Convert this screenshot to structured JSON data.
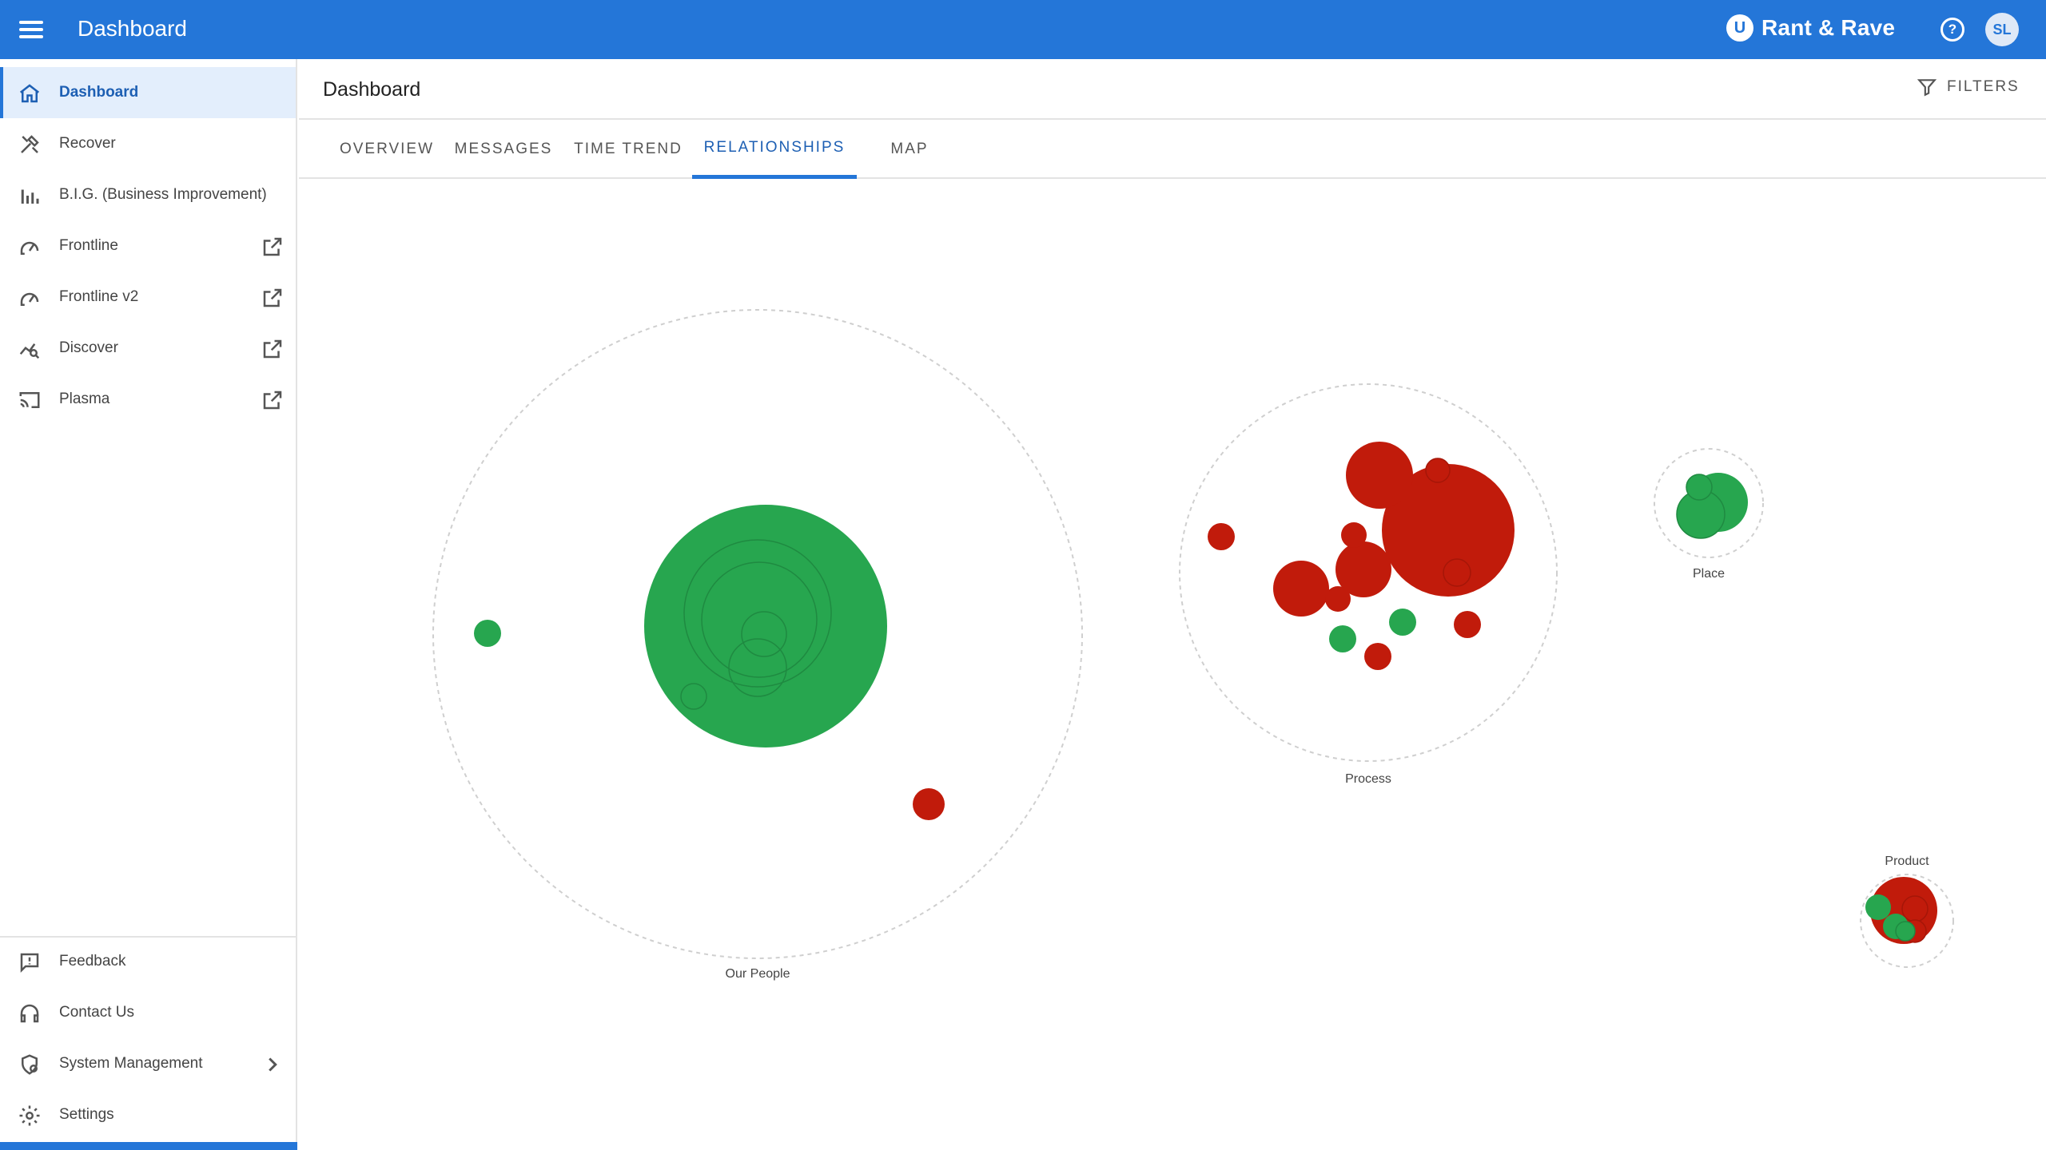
{
  "app": {
    "title": "Dashboard",
    "brand": "Rant & Rave",
    "brand_logo_letter": "U",
    "help_glyph": "?",
    "user_initials": "SL"
  },
  "sidebar": {
    "items": [
      {
        "label": "Dashboard",
        "icon": "home-icon",
        "active": true,
        "external": false
      },
      {
        "label": "Recover",
        "icon": "tools-icon",
        "active": false,
        "external": false
      },
      {
        "label": "B.I.G. (Business Improvement)",
        "icon": "bar-chart-icon",
        "active": false,
        "external": false
      },
      {
        "label": "Frontline",
        "icon": "headset-gauge-icon",
        "active": false,
        "external": true
      },
      {
        "label": "Frontline v2",
        "icon": "headset-gauge-icon",
        "active": false,
        "external": true
      },
      {
        "label": "Discover",
        "icon": "chart-search-icon",
        "active": false,
        "external": true
      },
      {
        "label": "Plasma",
        "icon": "cast-screen-icon",
        "active": false,
        "external": true
      }
    ],
    "bottom_items": [
      {
        "label": "Feedback",
        "icon": "feedback-icon"
      },
      {
        "label": "Contact Us",
        "icon": "headset-icon"
      },
      {
        "label": "System Management",
        "icon": "shield-gear-icon",
        "has_submenu": true
      },
      {
        "label": "Settings",
        "icon": "gear-icon"
      }
    ]
  },
  "header": {
    "title": "Dashboard",
    "filters_label": "FILTERS"
  },
  "tabs": [
    {
      "label": "OVERVIEW",
      "active": false
    },
    {
      "label": "MESSAGES",
      "active": false
    },
    {
      "label": "TIME TREND",
      "active": false
    },
    {
      "label": "RELATIONSHIPS",
      "active": true
    },
    {
      "label": "MAP",
      "active": false
    }
  ],
  "colors": {
    "accent": "#2476d8",
    "positive": "#27a64f",
    "negative": "#c11b0b",
    "cluster_border": "#cfcfcf"
  },
  "clusters": [
    {
      "name": "Our People"
    },
    {
      "name": "Process"
    },
    {
      "name": "Place"
    },
    {
      "name": "Product"
    }
  ]
}
